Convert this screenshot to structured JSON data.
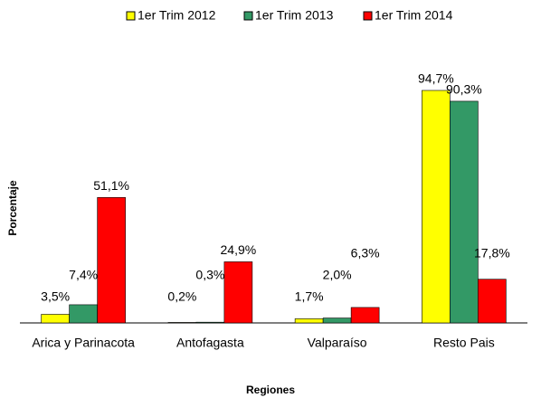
{
  "chart_data": {
    "type": "bar",
    "x_label": "Regiones",
    "y_label": "Porcentaje",
    "categories": [
      "Arica y Parinacota",
      "Antofagasta",
      "Valparaíso",
      "Resto Pais"
    ],
    "series": [
      {
        "name": "1er Trim 2012",
        "color": "#ffff00",
        "values": [
          3.5,
          0.2,
          1.7,
          94.7
        ],
        "value_labels": [
          "3,5%",
          "0,2%",
          "1,7%",
          "94,7%"
        ]
      },
      {
        "name": "1er Trim 2013",
        "color": "#339966",
        "values": [
          7.4,
          0.3,
          2.0,
          90.3
        ],
        "value_labels": [
          "7,4%",
          "0,3%",
          "2,0%",
          "90,3%"
        ]
      },
      {
        "name": "1er Trim 2014",
        "color": "#ff0000",
        "values": [
          51.1,
          24.9,
          6.3,
          17.8
        ],
        "value_labels": [
          "51,1%",
          "24,9%",
          "6,3%",
          "17,8%"
        ]
      }
    ],
    "legend": "top"
  }
}
